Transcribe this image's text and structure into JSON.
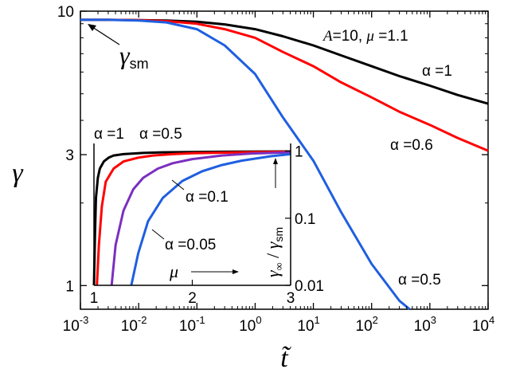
{
  "chart_data": [
    {
      "type": "line",
      "panel": "main",
      "xscale": "log",
      "yscale": "log",
      "xlim": [
        0.001,
        10000
      ],
      "ylim": [
        0.82,
        10
      ],
      "xlabel": "t̃",
      "ylabel": "γ",
      "x_ticks": [
        {
          "base": "10",
          "exp": "-3"
        },
        {
          "base": "10",
          "exp": "-2"
        },
        {
          "base": "10",
          "exp": "-1"
        },
        {
          "base": "10",
          "exp": "0"
        },
        {
          "base": "10",
          "exp": "1"
        },
        {
          "base": "10",
          "exp": "2"
        },
        {
          "base": "10",
          "exp": "3"
        },
        {
          "base": "10",
          "exp": "4"
        }
      ],
      "y_ticks": [
        "1",
        "3",
        "10"
      ],
      "param_label": {
        "A": "A",
        "A_val": "=10, ",
        "mu": "μ",
        "mu_val": " =1.1"
      },
      "gamma_sm_label": {
        "symbol": "γ",
        "sub": "sm"
      },
      "series": [
        {
          "name": "α =1",
          "color": "#000000",
          "x": [
            0.001,
            0.003,
            0.01,
            0.03,
            0.1,
            0.3,
            1,
            3,
            10,
            30,
            100,
            300,
            1000,
            3000,
            10000
          ],
          "y": [
            9.3,
            9.3,
            9.28,
            9.25,
            9.15,
            8.95,
            8.6,
            8.1,
            7.5,
            6.9,
            6.3,
            5.8,
            5.35,
            4.95,
            4.6
          ]
        },
        {
          "name": "α =0.6",
          "color": "#ff0000",
          "x": [
            0.001,
            0.003,
            0.01,
            0.03,
            0.1,
            0.3,
            1,
            3,
            10,
            30,
            100,
            300,
            1000,
            3000,
            10000
          ],
          "y": [
            9.3,
            9.3,
            9.28,
            9.2,
            9.0,
            8.6,
            8.0,
            7.1,
            6.3,
            5.5,
            4.85,
            4.3,
            3.85,
            3.45,
            3.1
          ]
        },
        {
          "name": "α =0.5",
          "color": "#1f5fe0",
          "x": [
            0.001,
            0.003,
            0.01,
            0.03,
            0.1,
            0.3,
            1,
            3,
            10,
            30,
            100,
            300,
            450
          ],
          "y": [
            9.3,
            9.3,
            9.25,
            9.1,
            8.6,
            7.5,
            5.9,
            4.1,
            2.85,
            1.85,
            1.2,
            0.88,
            0.82
          ]
        }
      ]
    },
    {
      "type": "line",
      "panel": "inset",
      "xscale": "linear",
      "yscale": "log",
      "xlim": [
        1,
        3
      ],
      "ylim": [
        0.01,
        1.3
      ],
      "xlabel": "μ",
      "ylabel": {
        "num": "γ",
        "num_sub": "∞",
        "slash": " / ",
        "den": "γ",
        "den_sub": "sm"
      },
      "x_ticks": [
        "1",
        "2",
        "3"
      ],
      "y_ticks": [
        "0.01",
        "0.1",
        "1"
      ],
      "series": [
        {
          "name": "α =1",
          "color": "#000000",
          "x": [
            1.0,
            1.01,
            1.02,
            1.04,
            1.06,
            1.1,
            1.15,
            1.2,
            1.3,
            1.5,
            1.7,
            2.0,
            2.5,
            3.0
          ],
          "y": [
            0.01,
            0.05,
            0.2,
            0.4,
            0.55,
            0.7,
            0.8,
            0.86,
            0.9,
            0.94,
            0.96,
            0.97,
            0.98,
            0.99
          ]
        },
        {
          "name": "α =0.5",
          "color": "#ff0000",
          "x": [
            1.03,
            1.05,
            1.08,
            1.12,
            1.2,
            1.3,
            1.45,
            1.6,
            1.8,
            2.0,
            2.5,
            3.0
          ],
          "y": [
            0.01,
            0.04,
            0.15,
            0.35,
            0.55,
            0.7,
            0.8,
            0.86,
            0.9,
            0.93,
            0.96,
            0.98
          ]
        },
        {
          "name": "α =0.1",
          "color": "#7b2fbf",
          "x": [
            1.18,
            1.22,
            1.3,
            1.4,
            1.5,
            1.65,
            1.8,
            2.0,
            2.3,
            2.6,
            3.0
          ],
          "y": [
            0.01,
            0.04,
            0.13,
            0.27,
            0.4,
            0.55,
            0.66,
            0.76,
            0.86,
            0.92,
            0.96
          ]
        },
        {
          "name": "α =0.05",
          "color": "#1f5fe0",
          "x": [
            1.38,
            1.45,
            1.55,
            1.7,
            1.9,
            2.1,
            2.3,
            2.5,
            2.8,
            3.0
          ],
          "y": [
            0.01,
            0.03,
            0.09,
            0.2,
            0.36,
            0.5,
            0.62,
            0.72,
            0.84,
            0.9
          ]
        }
      ]
    }
  ]
}
